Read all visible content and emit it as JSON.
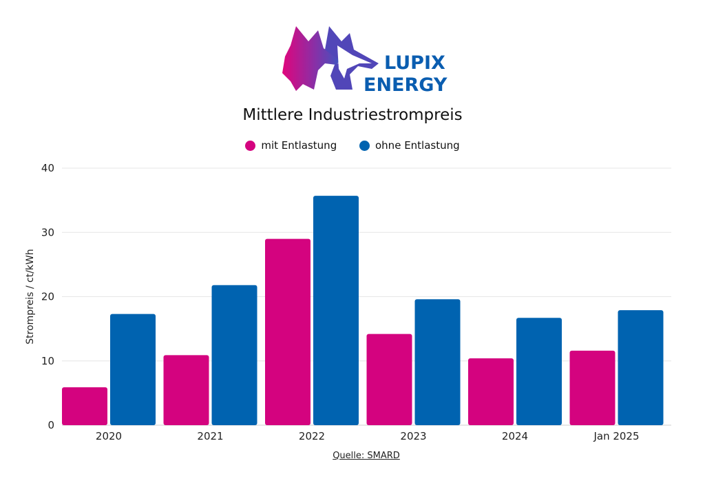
{
  "brand": {
    "line1": "LUPIX",
    "line2": "ENERGY"
  },
  "colors": {
    "mit": "#d4037f",
    "ohne": "#0063b0",
    "grid": "#e6e6e6",
    "logo_text": "#0a5db0"
  },
  "chart_data": {
    "type": "bar",
    "title": "Mittlere Industriestrompreis",
    "ylabel": "Strompreis / ct/kWh",
    "xlabel": "",
    "categories": [
      "2020",
      "2021",
      "2022",
      "2023",
      "2024",
      "Jan 2025"
    ],
    "series": [
      {
        "name": "mit Entlastung",
        "values": [
          5.9,
          10.9,
          29.0,
          14.2,
          10.4,
          11.6
        ]
      },
      {
        "name": "ohne Entlastung",
        "values": [
          17.3,
          21.8,
          35.7,
          19.6,
          16.7,
          17.9
        ]
      }
    ],
    "ylim": [
      0,
      40
    ],
    "yticks": [
      0,
      10,
      20,
      30,
      40
    ],
    "grid": true,
    "legend_position": "top"
  },
  "source": "Quelle: SMARD"
}
